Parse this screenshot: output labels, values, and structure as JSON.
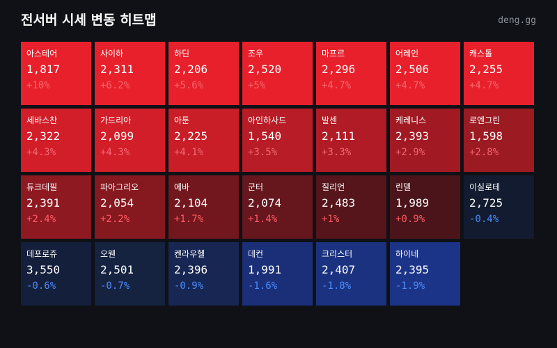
{
  "header": {
    "title": "전서버 시세 변동 히트맵",
    "site": "deng.gg"
  },
  "tiles": [
    {
      "name": "아스테어",
      "price": "1,817",
      "change": "+10%",
      "color": "#e8202b",
      "change_color": "#f7686f"
    },
    {
      "name": "사이하",
      "price": "2,311",
      "change": "+6.2%",
      "color": "#e8202b",
      "change_color": "#f7686f"
    },
    {
      "name": "하딘",
      "price": "2,206",
      "change": "+5.6%",
      "color": "#e8202b",
      "change_color": "#f7686f"
    },
    {
      "name": "조우",
      "price": "2,520",
      "change": "+5%",
      "color": "#e8202b",
      "change_color": "#f7686f"
    },
    {
      "name": "마프르",
      "price": "2,296",
      "change": "+4.7%",
      "color": "#e8202b",
      "change_color": "#f7686f"
    },
    {
      "name": "어레인",
      "price": "2,506",
      "change": "+4.7%",
      "color": "#e8202b",
      "change_color": "#f7686f"
    },
    {
      "name": "캐스톨",
      "price": "2,255",
      "change": "+4.7%",
      "color": "#e8202b",
      "change_color": "#f7686f"
    },
    {
      "name": "세바스찬",
      "price": "2,322",
      "change": "+4.3%",
      "color": "#d21e29",
      "change_color": "#f26a72"
    },
    {
      "name": "가드리아",
      "price": "2,099",
      "change": "+4.3%",
      "color": "#d21e29",
      "change_color": "#f26a72"
    },
    {
      "name": "아툰",
      "price": "2,225",
      "change": "+4.1%",
      "color": "#c91d28",
      "change_color": "#f26a72"
    },
    {
      "name": "아인하사드",
      "price": "1,540",
      "change": "+3.5%",
      "color": "#b81c26",
      "change_color": "#f26a72"
    },
    {
      "name": "발센",
      "price": "2,111",
      "change": "+3.3%",
      "color": "#b01b25",
      "change_color": "#f26a72"
    },
    {
      "name": "케레니스",
      "price": "2,393",
      "change": "+2.9%",
      "color": "#a11a23",
      "change_color": "#f4646c"
    },
    {
      "name": "로엔그린",
      "price": "1,598",
      "change": "+2.8%",
      "color": "#9c1a22",
      "change_color": "#f4646c"
    },
    {
      "name": "듀크데필",
      "price": "2,391",
      "change": "+2.4%",
      "color": "#8e1921",
      "change_color": "#ff5a64"
    },
    {
      "name": "파아그리오",
      "price": "2,054",
      "change": "+2.2%",
      "color": "#86181f",
      "change_color": "#ff5a64"
    },
    {
      "name": "에바",
      "price": "2,104",
      "change": "+1.7%",
      "color": "#73171e",
      "change_color": "#ff5a64"
    },
    {
      "name": "군터",
      "price": "2,074",
      "change": "+1.4%",
      "color": "#66161d",
      "change_color": "#ff5a64"
    },
    {
      "name": "질리언",
      "price": "2,483",
      "change": "+1%",
      "color": "#55151b",
      "change_color": "#ff5a64"
    },
    {
      "name": "린델",
      "price": "1,989",
      "change": "+0.9%",
      "color": "#4a141a",
      "change_color": "#ff5a64"
    },
    {
      "name": "이실로테",
      "price": "2,725",
      "change": "-0.4%",
      "color": "#121b2f",
      "change_color": "#4a8cff"
    },
    {
      "name": "데포로쥬",
      "price": "3,550",
      "change": "-0.6%",
      "color": "#141f3b",
      "change_color": "#4a8cff"
    },
    {
      "name": "오웬",
      "price": "2,501",
      "change": "-0.7%",
      "color": "#152240",
      "change_color": "#4a8cff"
    },
    {
      "name": "켄라우헬",
      "price": "2,396",
      "change": "-0.9%",
      "color": "#172652",
      "change_color": "#4a8cff"
    },
    {
      "name": "데컨",
      "price": "1,991",
      "change": "-1.6%",
      "color": "#1a2f78",
      "change_color": "#4a8cff"
    },
    {
      "name": "크리스터",
      "price": "2,407",
      "change": "-1.8%",
      "color": "#1b3280",
      "change_color": "#4a8cff"
    },
    {
      "name": "하이네",
      "price": "2,395",
      "change": "-1.9%",
      "color": "#1c3488",
      "change_color": "#4a8cff"
    }
  ]
}
